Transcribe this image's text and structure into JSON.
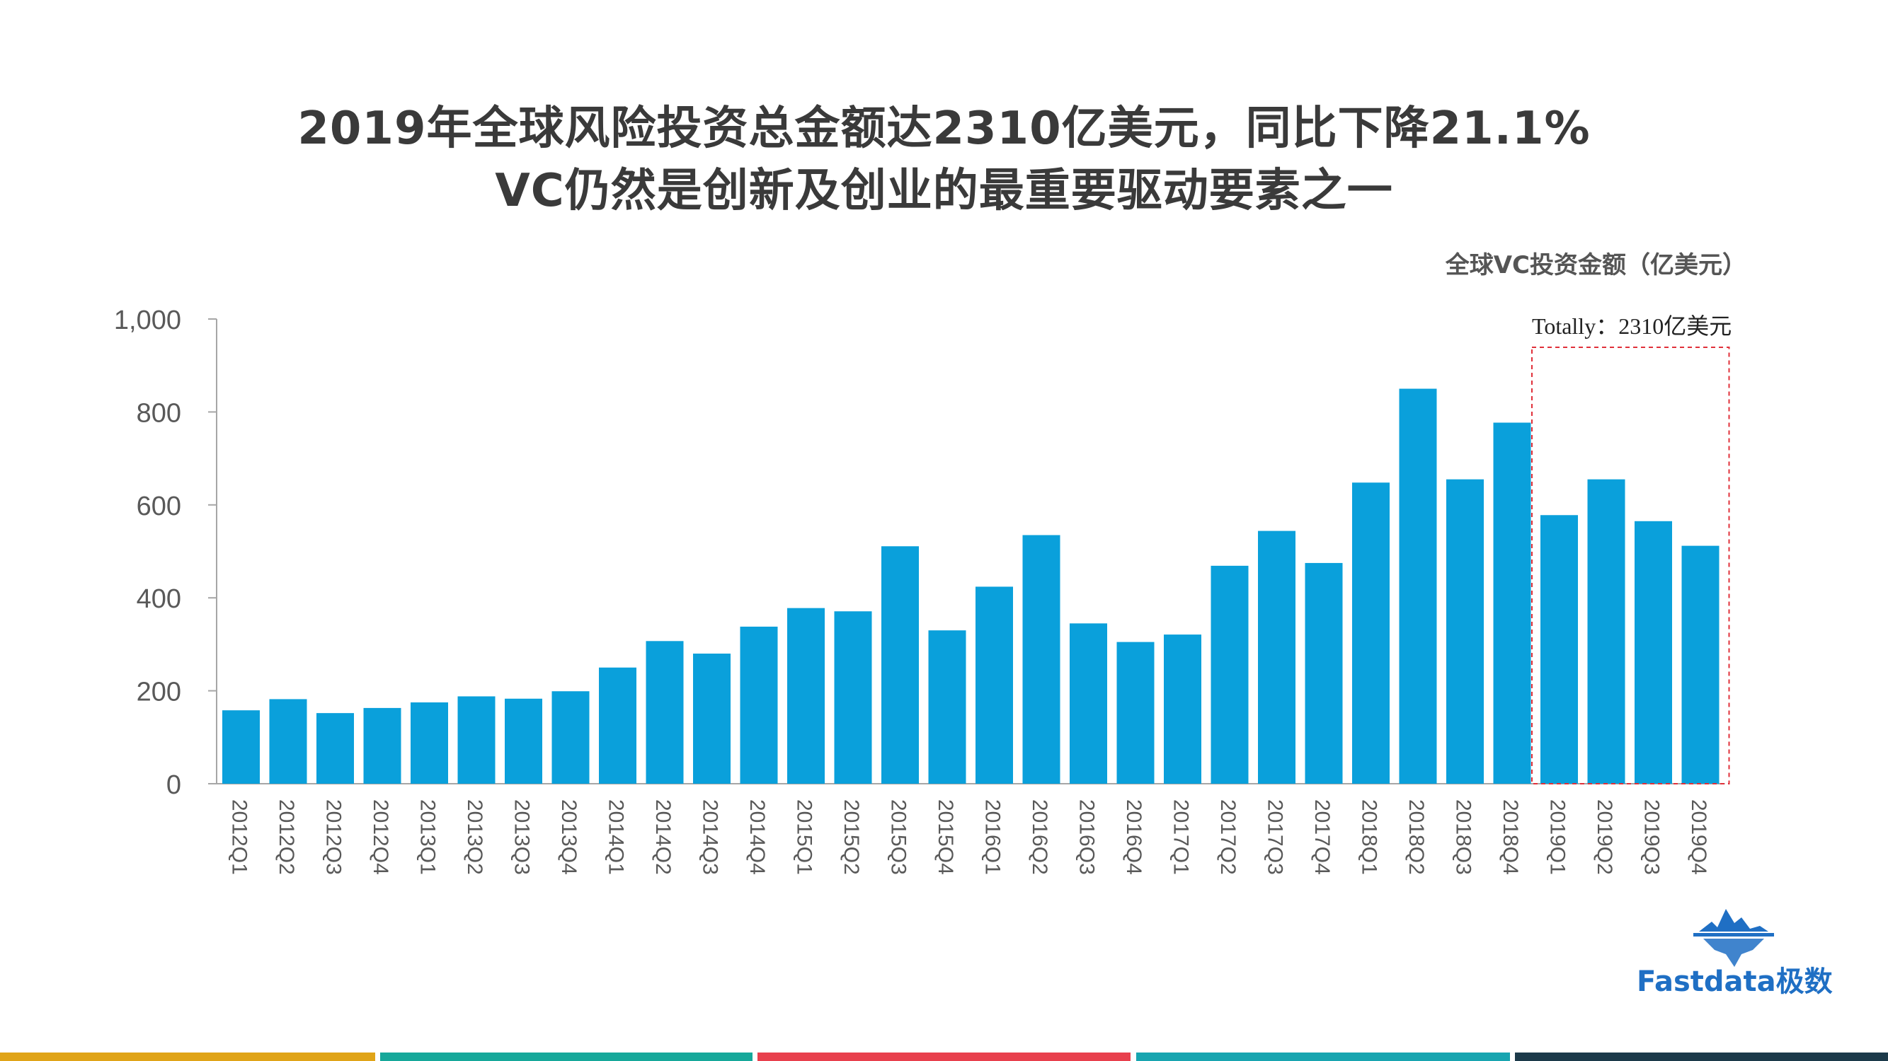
{
  "headline": {
    "line1": "2019年全球风险投资总金额达2310亿美元，同比下降21.1%",
    "line2": "VC仍然是创新及创业的最重要驱动要素之一"
  },
  "chart_subtitle": "全球VC投资金额（亿美元）",
  "logo": {
    "text": "Fastdata极数",
    "icon": "iceberg-icon"
  },
  "colors": {
    "bar": "#0aa0db",
    "axis": "#a6a6a6",
    "tick_text": "#595959",
    "highlight_box": "#e0303a",
    "logo": "#1f6fc4",
    "bands": [
      "#e0a418",
      "#16a89a",
      "#e8404d",
      "#18a5b0",
      "#1c3a4a"
    ]
  },
  "chart_data": {
    "type": "bar",
    "title": "全球VC投资金额（亿美元）",
    "xlabel": "",
    "ylabel": "",
    "ylim": [
      0,
      1000
    ],
    "yticks": [
      0,
      200,
      400,
      600,
      800,
      1000
    ],
    "ytick_labels": [
      "0",
      "200",
      "400",
      "600",
      "800",
      "1,000"
    ],
    "grid": false,
    "legend": "none",
    "categories": [
      "2012Q1",
      "2012Q2",
      "2012Q3",
      "2012Q4",
      "2013Q1",
      "2013Q2",
      "2013Q3",
      "2013Q4",
      "2014Q1",
      "2014Q2",
      "2014Q3",
      "2014Q4",
      "2015Q1",
      "2015Q2",
      "2015Q3",
      "2015Q4",
      "2016Q1",
      "2016Q2",
      "2016Q3",
      "2016Q4",
      "2017Q1",
      "2017Q2",
      "2017Q3",
      "2017Q4",
      "2018Q1",
      "2018Q2",
      "2018Q3",
      "2018Q4",
      "2019Q1",
      "2019Q2",
      "2019Q3",
      "2019Q4"
    ],
    "values": [
      158,
      182,
      152,
      163,
      175,
      188,
      183,
      199,
      250,
      307,
      280,
      338,
      378,
      371,
      511,
      330,
      424,
      535,
      345,
      305,
      321,
      469,
      544,
      475,
      648,
      850,
      655,
      777,
      578,
      655,
      565,
      512
    ],
    "annotation": {
      "text": "Totally：2310亿美元",
      "highlight_categories": [
        "2019Q1",
        "2019Q2",
        "2019Q3",
        "2019Q4"
      ]
    }
  }
}
